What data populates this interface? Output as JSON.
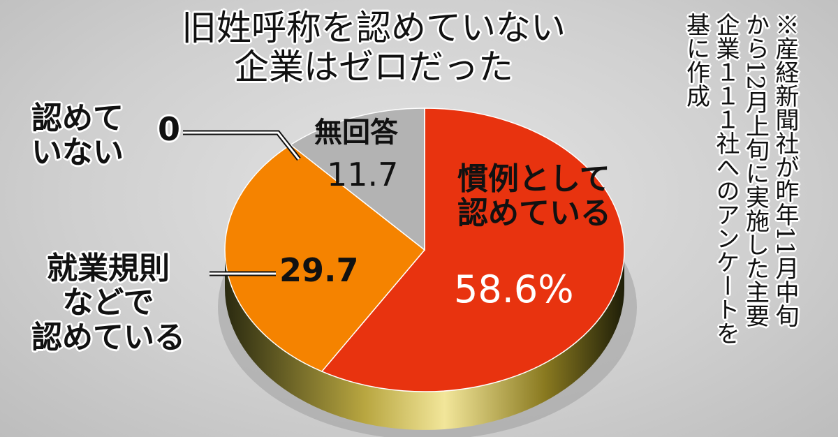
{
  "chart_data": {
    "type": "pie",
    "title": "旧姓呼称を認めていない\n企業はゼロだった",
    "note": "※産経新聞社が昨年11月中旬\nから12月上旬に実施した主要\n企業１１１社へのアンケートを\n基に作成",
    "categories": [
      "慣例として\n認めている",
      "就業規則\nなどで\n認めている",
      "無回答",
      "認めて\nいない"
    ],
    "values": [
      58.6,
      29.7,
      11.7,
      0
    ],
    "value_labels": [
      "58.6%",
      "29.7",
      "11.7",
      "0"
    ],
    "colors": [
      "#e8330f",
      "#f58300",
      "#b3b3b3",
      "#ffffff"
    ]
  }
}
